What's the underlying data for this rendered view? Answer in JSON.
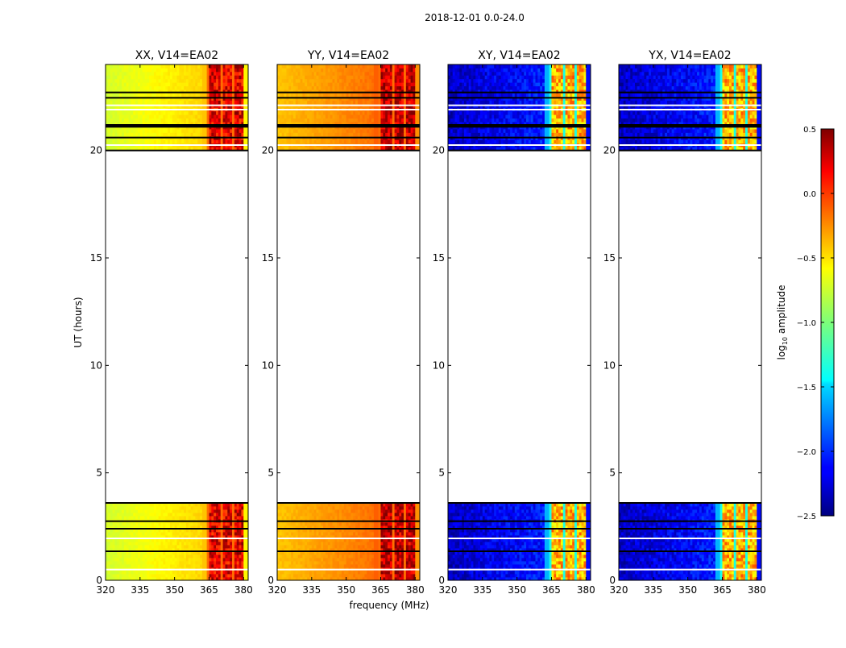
{
  "figure_title": "2018-12-01 0.0-24.0",
  "chart_data": {
    "type": "heatmap",
    "xlabel": "frequency (MHz)",
    "ylabel": "UT (hours)",
    "xlim": [
      320,
      382
    ],
    "ylim": [
      0,
      24
    ],
    "x_ticks": [
      320,
      335,
      350,
      365,
      380
    ],
    "y_ticks": [
      0,
      5,
      10,
      15,
      20
    ],
    "data_time_ranges_hours": [
      [
        0,
        3.6
      ],
      [
        20,
        24
      ]
    ],
    "panels": [
      {
        "title": "XX, V14=EA02",
        "pol": "XX",
        "base_level": -0.75,
        "rfi_level": 0.2
      },
      {
        "title": "YY, V14=EA02",
        "pol": "YY",
        "base_level": -0.45,
        "rfi_level": 0.3
      },
      {
        "title": "XY, V14=EA02",
        "pol": "XY",
        "base_level": -2.3,
        "rfi_level": -0.4
      },
      {
        "title": "YX, V14=EA02",
        "pol": "YX",
        "base_level": -2.3,
        "rfi_level": -0.4
      }
    ],
    "colorbar": {
      "label_prefix": "log",
      "label_sub": "10",
      "label_suffix": " amplitude",
      "min": -2.5,
      "max": 0.5,
      "ticks": [
        "0.5",
        "0.0",
        "−0.5",
        "−1.0",
        "−1.5",
        "−2.0",
        "−2.5"
      ],
      "tick_values": [
        0.5,
        0.0,
        -0.5,
        -1.0,
        -1.5,
        -2.0,
        -2.5
      ]
    }
  }
}
